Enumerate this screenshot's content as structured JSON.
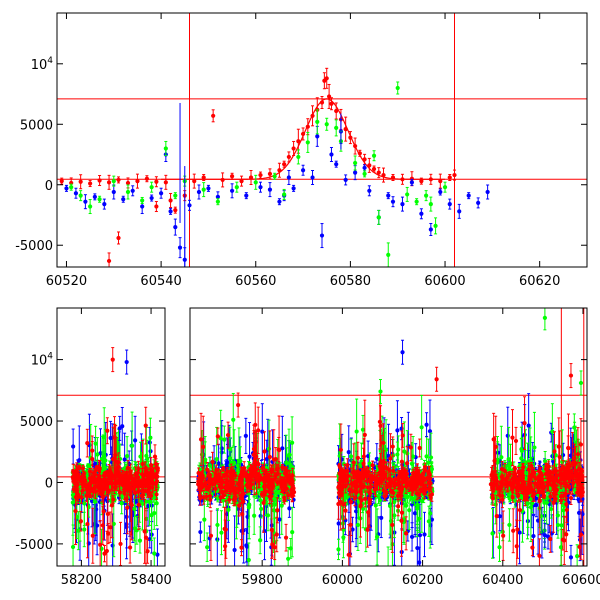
{
  "chart_data": [
    {
      "type": "scatter",
      "title": "",
      "xlabel": "",
      "ylabel": "",
      "xlim": [
        60518,
        60630
      ],
      "ylim": [
        -6800,
        14200
      ],
      "x_ticks": [
        "60520",
        "60540",
        "60560",
        "60580",
        "60600",
        "60620"
      ],
      "x_tick_values": [
        60520,
        60540,
        60560,
        60580,
        60600,
        60620
      ],
      "y_ticks": [
        "-5000",
        "0",
        "5000",
        "10⁴"
      ],
      "y_tick_values": [
        -5000,
        0,
        5000,
        10000
      ],
      "hlines": [
        7100,
        450
      ],
      "vlines": [
        60546,
        60602
      ],
      "model_curve": {
        "color": "#ff0000",
        "baseline": 450,
        "peak_x": 60575,
        "peak_y": 7100,
        "width": 4.5,
        "x_range": [
          60540,
          60600
        ]
      },
      "series": [
        {
          "color": "#ff0000",
          "points": [
            [
              60519,
              300
            ],
            [
              60521,
              150
            ],
            [
              60523,
              250
            ],
            [
              60525,
              100
            ],
            [
              60527,
              350
            ],
            [
              60529,
              200
            ],
            [
              60531,
              400
            ],
            [
              60533,
              150
            ],
            [
              60535,
              300
            ],
            [
              60537,
              500
            ],
            [
              60539,
              250
            ],
            [
              60541,
              200
            ],
            [
              60543,
              -2100
            ],
            [
              60545,
              -900
            ],
            [
              60547,
              300
            ],
            [
              60549,
              600
            ],
            [
              60551,
              5700
            ],
            [
              60553,
              400
            ],
            [
              60555,
              700
            ],
            [
              60557,
              300
            ],
            [
              60559,
              600
            ],
            [
              60561,
              800
            ],
            [
              60563,
              900
            ],
            [
              60565,
              1200
            ],
            [
              60566,
              1700
            ],
            [
              60567,
              2300
            ],
            [
              60568,
              3000
            ],
            [
              60569,
              3600
            ],
            [
              60570,
              4200
            ],
            [
              60571,
              4800
            ],
            [
              60572,
              5700
            ],
            [
              60573,
              6200
            ],
            [
              60574,
              6800
            ],
            [
              60574.5,
              8600
            ],
            [
              60575,
              8800
            ],
            [
              60575.5,
              7300
            ],
            [
              60576,
              6700
            ],
            [
              60577,
              6100
            ],
            [
              60578,
              5400
            ],
            [
              60579,
              4600
            ],
            [
              60580,
              3900
            ],
            [
              60581,
              3200
            ],
            [
              60582,
              2600
            ],
            [
              60583,
              2100
            ],
            [
              60584,
              1600
            ],
            [
              60585,
              1300
            ],
            [
              60586,
              1000
            ],
            [
              60587,
              800
            ],
            [
              60589,
              600
            ],
            [
              60591,
              450
            ],
            [
              60593,
              500
            ],
            [
              60595,
              300
            ],
            [
              60597,
              450
            ],
            [
              60599,
              300
            ],
            [
              60601,
              600
            ],
            [
              60602,
              800
            ],
            [
              60531,
              -4400
            ],
            [
              60529,
              -6300
            ],
            [
              60539,
              -1800
            ],
            [
              60542,
              -1300
            ]
          ]
        },
        {
          "color": "#0000ff",
          "points": [
            [
              60520,
              -300
            ],
            [
              60522,
              -700
            ],
            [
              60524,
              -1400
            ],
            [
              60526,
              -1000
            ],
            [
              60528,
              -1600
            ],
            [
              60530,
              -600
            ],
            [
              60532,
              -1200
            ],
            [
              60534,
              -500
            ],
            [
              60536,
              -1800
            ],
            [
              60538,
              -1100
            ],
            [
              60540,
              -700
            ],
            [
              60541,
              2500
            ],
            [
              60542,
              -2200
            ],
            [
              60543,
              -3500
            ],
            [
              60544,
              -5200
            ],
            [
              60545,
              -6200
            ],
            [
              60546,
              -1700
            ],
            [
              60548,
              -600
            ],
            [
              60550,
              -300
            ],
            [
              60552,
              -1000
            ],
            [
              60555,
              -500
            ],
            [
              60558,
              -900
            ],
            [
              60561,
              -200
            ],
            [
              60563,
              -400
            ],
            [
              60565,
              -1400
            ],
            [
              60566,
              -900
            ],
            [
              60567,
              600
            ],
            [
              60568,
              -300
            ],
            [
              60570,
              1200
            ],
            [
              60572,
              600
            ],
            [
              60573,
              4000
            ],
            [
              60574,
              -4200
            ],
            [
              60576,
              2500
            ],
            [
              60577,
              1700
            ],
            [
              60579,
              400
            ],
            [
              60581,
              1000
            ],
            [
              60583,
              1400
            ],
            [
              60584,
              -500
            ],
            [
              60586,
              -2700
            ],
            [
              60588,
              -900
            ],
            [
              60589,
              -1400
            ],
            [
              60591,
              -1600
            ],
            [
              60593,
              200
            ],
            [
              60595,
              -2400
            ],
            [
              60597,
              -3700
            ],
            [
              60599,
              -600
            ],
            [
              60601,
              -1600
            ],
            [
              60603,
              -2200
            ],
            [
              60605,
              -900
            ],
            [
              60607,
              -1500
            ],
            [
              60609,
              -600
            ],
            [
              60578,
              4400
            ]
          ]
        },
        {
          "color": "#00ff00",
          "points": [
            [
              60521,
              -200
            ],
            [
              60523,
              -900
            ],
            [
              60525,
              -1800
            ],
            [
              60527,
              -1200
            ],
            [
              60530,
              300
            ],
            [
              60533,
              -600
            ],
            [
              60536,
              -1300
            ],
            [
              60538,
              -200
            ],
            [
              60541,
              3000
            ],
            [
              60543,
              -900
            ],
            [
              60545,
              300
            ],
            [
              60549,
              -400
            ],
            [
              60552,
              -1400
            ],
            [
              60556,
              -200
            ],
            [
              60560,
              200
            ],
            [
              60564,
              700
            ],
            [
              60566,
              -800
            ],
            [
              60569,
              2300
            ],
            [
              60571,
              3500
            ],
            [
              60573,
              5200
            ],
            [
              60575,
              5000
            ],
            [
              60577,
              4700
            ],
            [
              60578,
              3600
            ],
            [
              60581,
              1800
            ],
            [
              60583,
              900
            ],
            [
              60585,
              2400
            ],
            [
              60586,
              -2700
            ],
            [
              60588,
              -5800
            ],
            [
              60590,
              8000
            ],
            [
              60592,
              -800
            ],
            [
              60594,
              -1400
            ],
            [
              60596,
              -900
            ],
            [
              60597,
              -1600
            ],
            [
              60598,
              -3400
            ],
            [
              60600,
              -200
            ]
          ]
        }
      ]
    },
    {
      "type": "scatter",
      "title": "",
      "xlabel": "",
      "ylabel": "",
      "broken_x_axis": true,
      "xlim_left": [
        58130,
        58440
      ],
      "xlim_right": [
        59620,
        60610
      ],
      "ylim": [
        -6800,
        14200
      ],
      "x_ticks_left": [
        "58200",
        "58400"
      ],
      "x_tick_values_left": [
        58200,
        58400
      ],
      "x_ticks_right": [
        "59800",
        "60000",
        "60200",
        "60400",
        "60600"
      ],
      "x_tick_values_right": [
        59800,
        60000,
        60200,
        60400,
        60600
      ],
      "y_ticks": [
        "-5000",
        "0",
        "5000",
        "10⁴"
      ],
      "y_tick_values": [
        -5000,
        0,
        5000,
        10000
      ],
      "hlines": [
        7100,
        450
      ],
      "vlines": [
        60546,
        60602
      ],
      "seasons": [
        {
          "x_range": [
            58175,
            58420
          ],
          "flare_x": 58300
        },
        {
          "x_range": [
            59640,
            59880
          ],
          "flare_x": 59780
        },
        {
          "x_range": [
            59990,
            60225
          ],
          "flare_x": 60100
        },
        {
          "x_range": [
            60370,
            60600
          ],
          "flare_x": 60575
        }
      ],
      "outliers": [
        {
          "color": "#ff0000",
          "x": 58290,
          "y": 10000
        },
        {
          "color": "#0000ff",
          "x": 58330,
          "y": 9800
        },
        {
          "color": "#0000ff",
          "x": 58310,
          "y": 4400
        },
        {
          "color": "#ff0000",
          "x": 58390,
          "y": -5600
        },
        {
          "color": "#0000ff",
          "x": 60150,
          "y": 10600
        },
        {
          "color": "#ff0000",
          "x": 60235,
          "y": 8400
        },
        {
          "color": "#0000ff",
          "x": 60210,
          "y": 4700
        },
        {
          "color": "#00ff00",
          "x": 60095,
          "y": 7400
        },
        {
          "color": "#00ff00",
          "x": 60505,
          "y": 13400
        },
        {
          "color": "#ff0000",
          "x": 60570,
          "y": 8700
        },
        {
          "color": "#00ff00",
          "x": 60595,
          "y": 8100
        },
        {
          "color": "#ff0000",
          "x": 59740,
          "y": 6300
        },
        {
          "color": "#0000ff",
          "x": 60505,
          "y": -4300
        },
        {
          "color": "#0000ff",
          "x": 60570,
          "y": -6100
        }
      ]
    }
  ]
}
